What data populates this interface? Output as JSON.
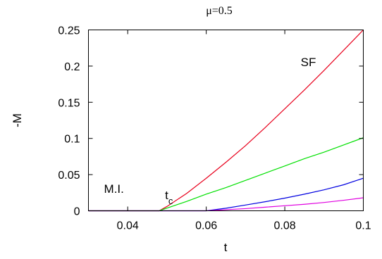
{
  "chart_data": {
    "type": "line",
    "title": "μ=0.5",
    "xlabel": "t",
    "ylabel": "-M",
    "xlim": [
      0.03,
      0.1
    ],
    "ylim": [
      0,
      0.25
    ],
    "xticks": [
      0.04,
      0.06,
      0.08,
      0.1
    ],
    "xtick_labels": [
      "0.04",
      "0.06",
      "0.08",
      "0.1"
    ],
    "yticks": [
      0,
      0.05,
      0.1,
      0.15,
      0.2,
      0.25
    ],
    "ytick_labels": [
      "0",
      "0.05",
      "0.1",
      "0.15",
      "0.2",
      "0.25"
    ],
    "grid": false,
    "annotations": [
      {
        "text": "SF",
        "x": 0.086,
        "y": 0.2
      },
      {
        "text": "M.I.",
        "x": 0.0365,
        "y": 0.025
      },
      {
        "text": "t",
        "subscript": "c",
        "x": 0.0505,
        "y": 0.016
      }
    ],
    "series": [
      {
        "color": "#e8001c",
        "x": [
          0.03,
          0.048,
          0.05,
          0.055,
          0.06,
          0.065,
          0.07,
          0.075,
          0.08,
          0.085,
          0.09,
          0.095,
          0.1
        ],
        "y": [
          0,
          0,
          0.006,
          0.024,
          0.045,
          0.067,
          0.09,
          0.115,
          0.141,
          0.167,
          0.194,
          0.222,
          0.25
        ]
      },
      {
        "color": "#00e000",
        "x": [
          0.03,
          0.048,
          0.055,
          0.06,
          0.065,
          0.07,
          0.075,
          0.08,
          0.085,
          0.09,
          0.095,
          0.1
        ],
        "y": [
          0,
          0,
          0.013,
          0.023,
          0.032,
          0.042,
          0.052,
          0.062,
          0.072,
          0.081,
          0.091,
          0.101
        ]
      },
      {
        "color": "#0000e0",
        "x": [
          0.03,
          0.06,
          0.065,
          0.07,
          0.075,
          0.08,
          0.085,
          0.09,
          0.095,
          0.1
        ],
        "y": [
          0,
          0,
          0.0035,
          0.008,
          0.0125,
          0.0175,
          0.023,
          0.029,
          0.036,
          0.045
        ]
      },
      {
        "color": "#e000e0",
        "x": [
          0.03,
          0.06,
          0.065,
          0.07,
          0.075,
          0.08,
          0.085,
          0.09,
          0.095,
          0.1
        ],
        "y": [
          0,
          0,
          0.0015,
          0.003,
          0.005,
          0.007,
          0.009,
          0.0115,
          0.0145,
          0.018
        ]
      }
    ]
  }
}
